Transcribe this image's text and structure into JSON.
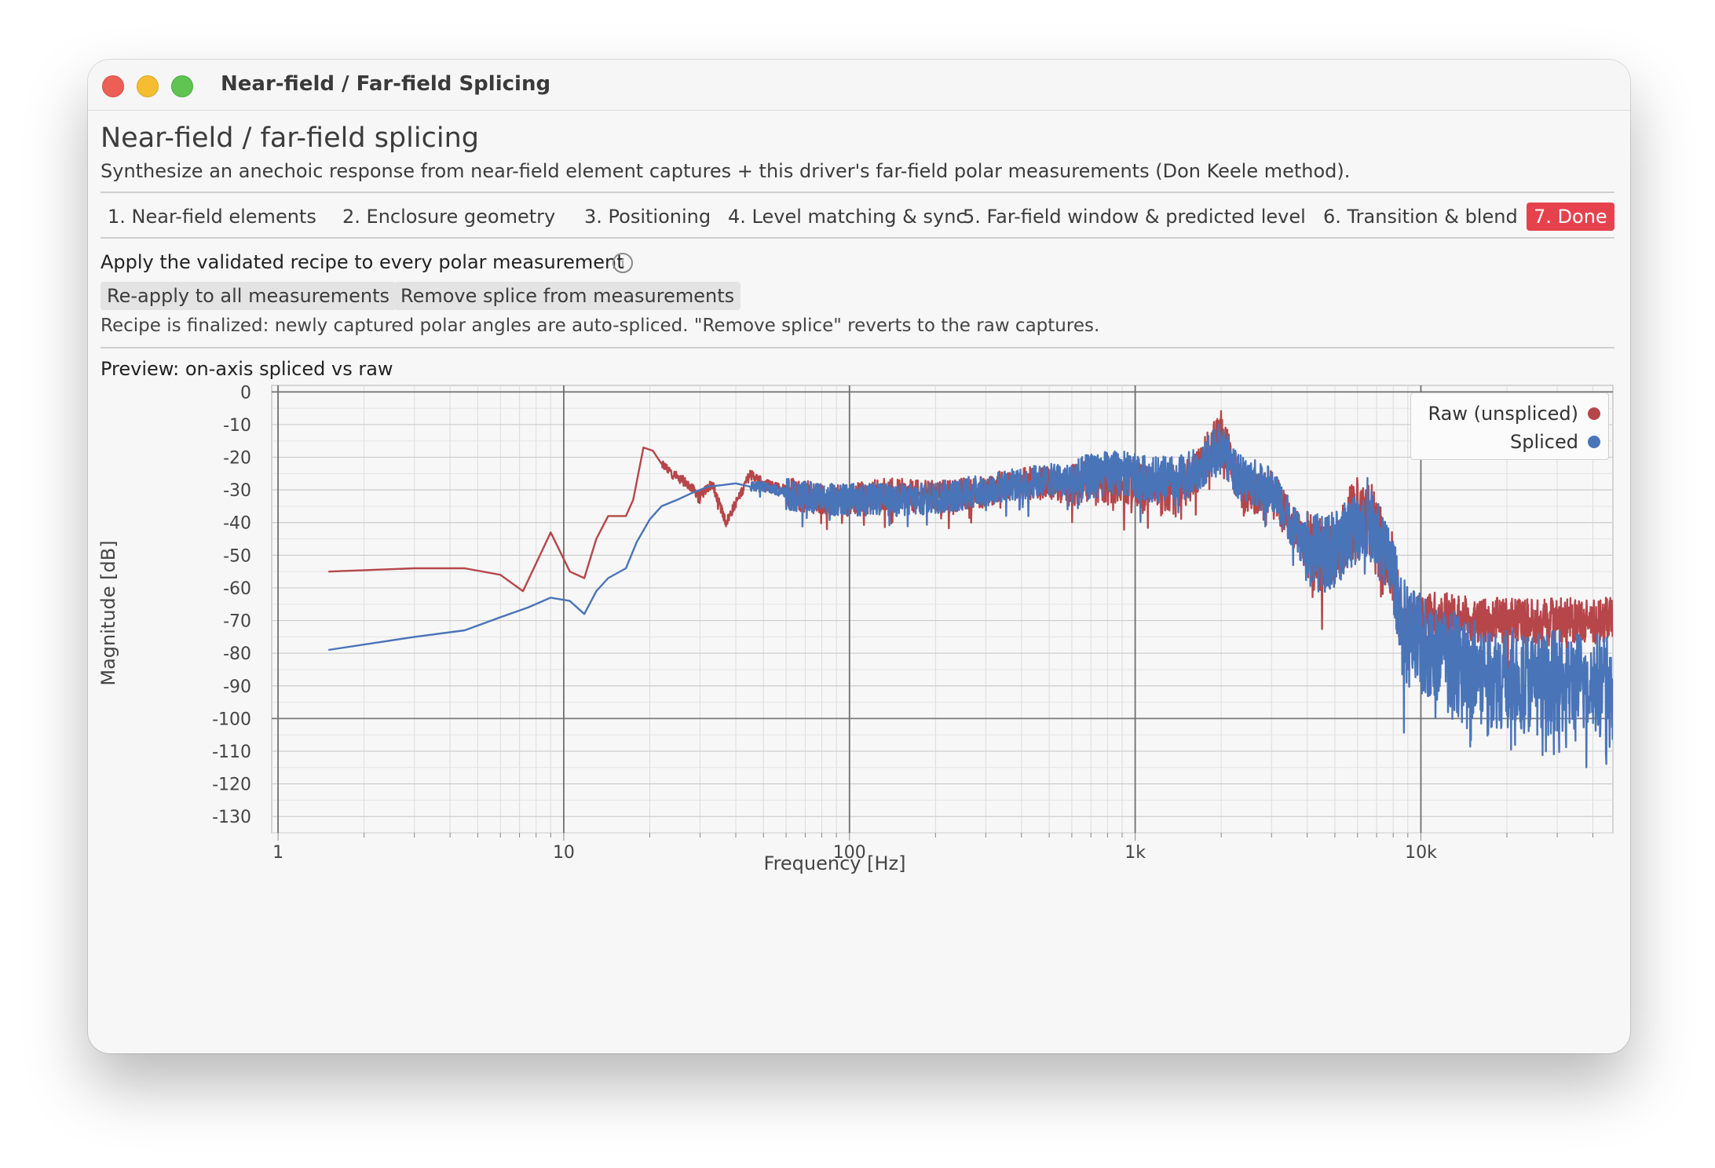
{
  "window": {
    "title": "Near-field / Far-field Splicing"
  },
  "page": {
    "heading": "Near-field / far-field splicing",
    "subheading": "Synthesize an anechoic response from near-field element captures + this driver's far-field polar measurements (Don Keele method)."
  },
  "tabs": [
    {
      "label": "1. Near-field elements",
      "active": false
    },
    {
      "label": "2. Enclosure geometry",
      "active": false
    },
    {
      "label": "3. Positioning",
      "active": false
    },
    {
      "label": "4. Level matching & sync",
      "active": false
    },
    {
      "label": "5. Far-field window & predicted level",
      "active": false
    },
    {
      "label": "6. Transition & blend",
      "active": false
    },
    {
      "label": "7. Done",
      "active": true
    }
  ],
  "apply": {
    "title": "Apply the validated recipe to every polar measurement",
    "info_icon": "info-icon",
    "reapply_label": "Re-apply to all measurements",
    "remove_label": "Remove splice from measurements",
    "note": "Recipe is finalized: newly captured polar angles are auto-spliced. \"Remove splice\" reverts to the raw captures."
  },
  "preview": {
    "title": "Preview: on-axis spliced vs raw"
  },
  "chart_data": {
    "type": "line",
    "xlabel": "Frequency [Hz]",
    "ylabel": "Magnitude [dB]",
    "xscale": "log",
    "xlim": [
      0.95,
      47000
    ],
    "ylim": [
      -135,
      2
    ],
    "xticks": [
      1,
      10,
      100,
      1000,
      10000
    ],
    "xtick_labels": [
      "1",
      "10",
      "100",
      "1k",
      "10k"
    ],
    "yticks": [
      0,
      -10,
      -20,
      -30,
      -40,
      -50,
      -60,
      -70,
      -80,
      -90,
      -100,
      -110,
      -120,
      -130
    ],
    "ytick_labels": [
      "0",
      "-10",
      "-20",
      "-30",
      "-40",
      "-50",
      "-60",
      "-70",
      "-80",
      "-90",
      "-100",
      "-110",
      "-120",
      "-130"
    ],
    "grid": true,
    "legend_position": "top-right",
    "series": [
      {
        "name": "Raw (unspliced)",
        "color": "#b6464a",
        "noisy_band": {
          "from_hz": 22,
          "to_hz": 47000
        },
        "x": [
          1.5,
          3,
          4.5,
          6,
          7.2,
          9.0,
          10.5,
          11.8,
          13,
          14.3,
          16.5,
          17.5,
          19,
          20.5,
          22,
          24,
          27,
          30,
          33,
          37,
          40,
          45,
          50,
          60,
          70,
          85,
          100,
          130,
          170,
          220,
          300,
          400,
          500,
          600,
          700,
          800,
          900,
          1000,
          1200,
          1500,
          1700,
          1900,
          2000,
          2100,
          2200,
          2400,
          2700,
          3000,
          3300,
          3600,
          4000,
          4500,
          5000,
          5500,
          6000,
          6500,
          7000,
          7500,
          8000,
          8500,
          9000,
          10000,
          12000,
          15000,
          20000,
          25000,
          30000,
          35000,
          40000,
          45000,
          47000
        ],
        "y": [
          -55,
          -54,
          -54,
          -56,
          -61,
          -43,
          -55,
          -57,
          -45,
          -38,
          -38,
          -33,
          -17,
          -18,
          -22,
          -25,
          -28,
          -32,
          -28,
          -40,
          -34,
          -25,
          -28,
          -30,
          -32,
          -33,
          -33,
          -31,
          -32,
          -32,
          -30,
          -28,
          -28,
          -29,
          -28,
          -28,
          -27,
          -28,
          -31,
          -28,
          -23,
          -15,
          -12,
          -18,
          -24,
          -30,
          -32,
          -31,
          -36,
          -42,
          -48,
          -50,
          -48,
          -42,
          -38,
          -36,
          -44,
          -48,
          -55,
          -70,
          -72,
          -68,
          -68,
          -70,
          -70,
          -70,
          -70,
          -70,
          -70,
          -70,
          -70
        ]
      },
      {
        "name": "Spliced",
        "color": "#4a74b8",
        "noisy_band": {
          "from_hz": 45,
          "to_hz": 47000
        },
        "x": [
          1.5,
          3,
          4.5,
          6,
          7.5,
          9.0,
          10.5,
          11.8,
          13,
          14.3,
          16.5,
          18,
          20,
          22,
          25,
          28,
          32,
          36,
          40,
          45,
          50,
          60,
          70,
          85,
          100,
          130,
          170,
          220,
          300,
          400,
          500,
          600,
          700,
          800,
          900,
          1000,
          1200,
          1500,
          1700,
          1900,
          2000,
          2100,
          2200,
          2400,
          2700,
          3000,
          3300,
          3600,
          4000,
          4500,
          5000,
          5500,
          6000,
          6500,
          7000,
          7500,
          8000,
          8500,
          9000,
          10000,
          12000,
          15000,
          20000,
          25000,
          30000,
          35000,
          40000,
          45000,
          47000
        ],
        "y": [
          -79,
          -75,
          -73,
          -69,
          -66,
          -63,
          -64,
          -68,
          -61,
          -57,
          -54,
          -46,
          -39,
          -35,
          -33,
          -31,
          -29,
          -28.5,
          -28,
          -29,
          -29,
          -31,
          -32,
          -33,
          -33,
          -33,
          -33,
          -32,
          -30,
          -28,
          -27,
          -27,
          -26,
          -25,
          -25,
          -26,
          -27,
          -26,
          -23,
          -18,
          -16,
          -20,
          -24,
          -27,
          -28,
          -30,
          -35,
          -42,
          -48,
          -50,
          -48,
          -44,
          -40,
          -38,
          -45,
          -50,
          -55,
          -70,
          -75,
          -78,
          -82,
          -85,
          -88,
          -89,
          -89,
          -89,
          -89,
          -89,
          -89
        ]
      }
    ]
  }
}
